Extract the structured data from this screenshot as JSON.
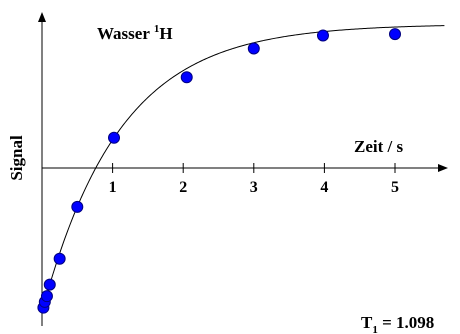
{
  "chart_data": {
    "type": "scatter",
    "title": "Wasser ",
    "title_superscript": "1",
    "title_suffix": "H",
    "xlabel": "Zeit / s",
    "ylabel": "Signal",
    "xticks": [
      "1",
      "2",
      "3",
      "4",
      "5"
    ],
    "xtick_values": [
      1,
      2,
      3,
      4,
      5
    ],
    "xlim": [
      0,
      5.8
    ],
    "ylim": [
      -1.0,
      1.04
    ],
    "grid": false,
    "annotation": {
      "main": "T",
      "subscript": "1",
      "value": " = 1.098"
    },
    "marker_color": "#0000ff",
    "fit_curve": {
      "model": "inversion_recovery",
      "T1": 1.098,
      "M0": 1.0
    },
    "points": [
      {
        "x": 0.02,
        "y": -0.97
      },
      {
        "x": 0.04,
        "y": -0.93
      },
      {
        "x": 0.07,
        "y": -0.89
      },
      {
        "x": 0.11,
        "y": -0.81
      },
      {
        "x": 0.25,
        "y": -0.63
      },
      {
        "x": 0.5,
        "y": -0.27
      },
      {
        "x": 1.02,
        "y": 0.21
      },
      {
        "x": 2.05,
        "y": 0.63
      },
      {
        "x": 3.0,
        "y": 0.83
      },
      {
        "x": 3.98,
        "y": 0.92
      },
      {
        "x": 5.0,
        "y": 0.93
      }
    ]
  }
}
